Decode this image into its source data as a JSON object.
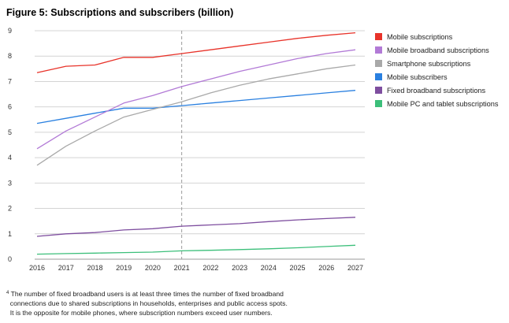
{
  "title": "Figure 5: Subscriptions and subscribers (billion)",
  "chart_data": {
    "type": "line",
    "title": "Figure 5: Subscriptions and subscribers (billion)",
    "xlabel": "",
    "ylabel": "",
    "x": [
      "2016",
      "2017",
      "2018",
      "2019",
      "2020",
      "2021",
      "2022",
      "2023",
      "2024",
      "2025",
      "2026",
      "2027"
    ],
    "y_ticks": [
      "0",
      "1",
      "2",
      "3",
      "4",
      "5",
      "6",
      "7",
      "8",
      "9"
    ],
    "ylim": [
      0,
      9
    ],
    "grid": "horizontal",
    "legend_position": "right",
    "marker_x": "2021",
    "series": [
      {
        "name": "Mobile subscriptions",
        "color": "#e8332a",
        "values": [
          7.35,
          7.6,
          7.65,
          7.95,
          7.95,
          8.1,
          8.25,
          8.4,
          8.55,
          8.7,
          8.82,
          8.92
        ]
      },
      {
        "name": "Mobile broadband subscriptions",
        "color": "#b27ad6",
        "values": [
          4.35,
          5.05,
          5.6,
          6.15,
          6.45,
          6.8,
          7.1,
          7.4,
          7.65,
          7.9,
          8.1,
          8.25
        ]
      },
      {
        "name": "Smartphone subscriptions",
        "color": "#a9a9a9",
        "values": [
          3.7,
          4.45,
          5.05,
          5.6,
          5.9,
          6.2,
          6.55,
          6.85,
          7.1,
          7.3,
          7.5,
          7.65
        ]
      },
      {
        "name": "Mobile subscribers",
        "color": "#2a80e0",
        "values": [
          5.35,
          5.55,
          5.75,
          5.95,
          5.95,
          6.05,
          6.15,
          6.25,
          6.35,
          6.45,
          6.55,
          6.65
        ]
      },
      {
        "name": "Fixed broadband subscriptions",
        "color": "#7e4e9f",
        "values": [
          0.9,
          1.0,
          1.05,
          1.15,
          1.2,
          1.3,
          1.35,
          1.4,
          1.48,
          1.55,
          1.6,
          1.65
        ]
      },
      {
        "name": "Mobile PC and tablet subscriptions",
        "color": "#3cbf7a",
        "values": [
          0.2,
          0.22,
          0.24,
          0.26,
          0.28,
          0.33,
          0.35,
          0.38,
          0.41,
          0.45,
          0.5,
          0.55
        ]
      }
    ]
  },
  "footnote": {
    "marker": "4",
    "lines": [
      "The number of fixed broadband users is at least three times the number of fixed broadband",
      "connections due to shared subscriptions in households, enterprises and public access spots.",
      "It is the opposite for mobile phones, where subscription numbers exceed user numbers."
    ]
  }
}
